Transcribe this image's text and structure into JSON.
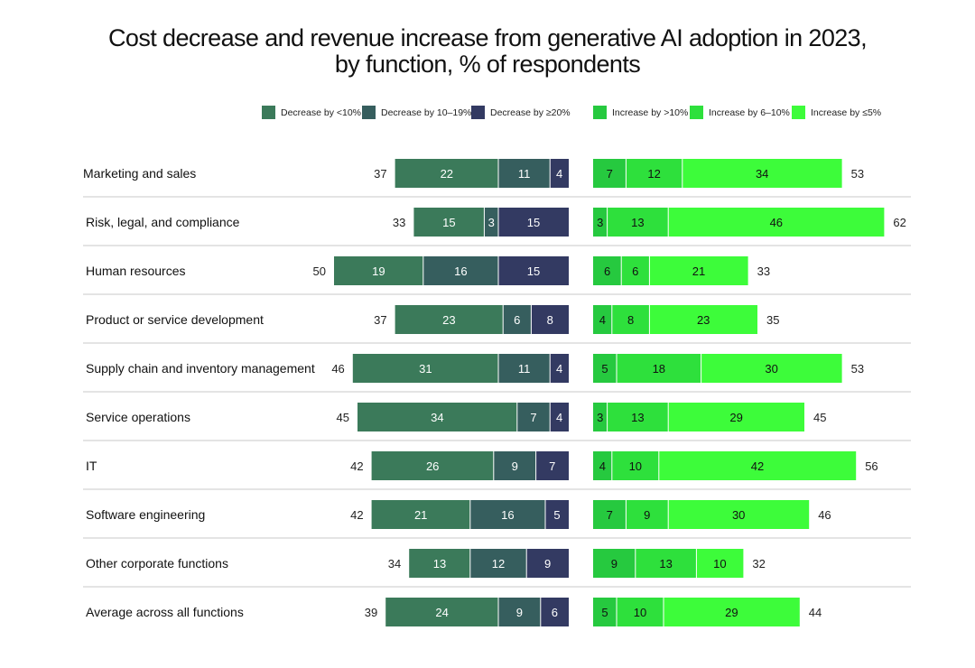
{
  "chart_data": {
    "type": "bar",
    "subtype": "diverging-stacked-horizontal",
    "title_line1": "Cost decrease and revenue increase from generative AI adoption in 2023,",
    "title_line2": "by function, % of respondents",
    "categories": [
      "Marketing and sales",
      "Risk, legal, and compliance",
      "Human resources",
      "Product or service development",
      "Supply chain and inventory management",
      "Service operations",
      "IT",
      "Software engineering",
      "Other corporate functions",
      "Average across all functions"
    ],
    "cost_series": [
      {
        "name": "Decrease by <10%",
        "color": "#3b7a5a",
        "text_color": "#ffffff",
        "values": [
          22,
          15,
          19,
          23,
          31,
          34,
          26,
          21,
          13,
          24
        ]
      },
      {
        "name": "Decrease by 10–19%",
        "color": "#365e5e",
        "text_color": "#ffffff",
        "values": [
          11,
          3,
          16,
          6,
          11,
          7,
          9,
          16,
          12,
          9
        ]
      },
      {
        "name": "Decrease by ≥20%",
        "color": "#333a62",
        "text_color": "#ffffff",
        "values": [
          4,
          15,
          15,
          8,
          4,
          4,
          7,
          5,
          9,
          6
        ]
      }
    ],
    "cost_totals": [
      37,
      33,
      50,
      37,
      46,
      45,
      42,
      42,
      34,
      39
    ],
    "revenue_series": [
      {
        "name": "Increase by >10%",
        "color": "#26c93f",
        "text_color": "#111111",
        "values": [
          7,
          3,
          6,
          4,
          5,
          3,
          4,
          7,
          9,
          5
        ]
      },
      {
        "name": "Increase by 6–10%",
        "color": "#2ee03c",
        "text_color": "#111111",
        "values": [
          12,
          13,
          6,
          8,
          18,
          13,
          10,
          9,
          13,
          10
        ]
      },
      {
        "name": "Increase by ≤5%",
        "color": "#3dfc3a",
        "text_color": "#111111",
        "values": [
          34,
          46,
          21,
          23,
          30,
          29,
          42,
          30,
          10,
          29
        ]
      }
    ],
    "revenue_totals": [
      53,
      62,
      33,
      35,
      53,
      45,
      56,
      46,
      32,
      44
    ]
  }
}
